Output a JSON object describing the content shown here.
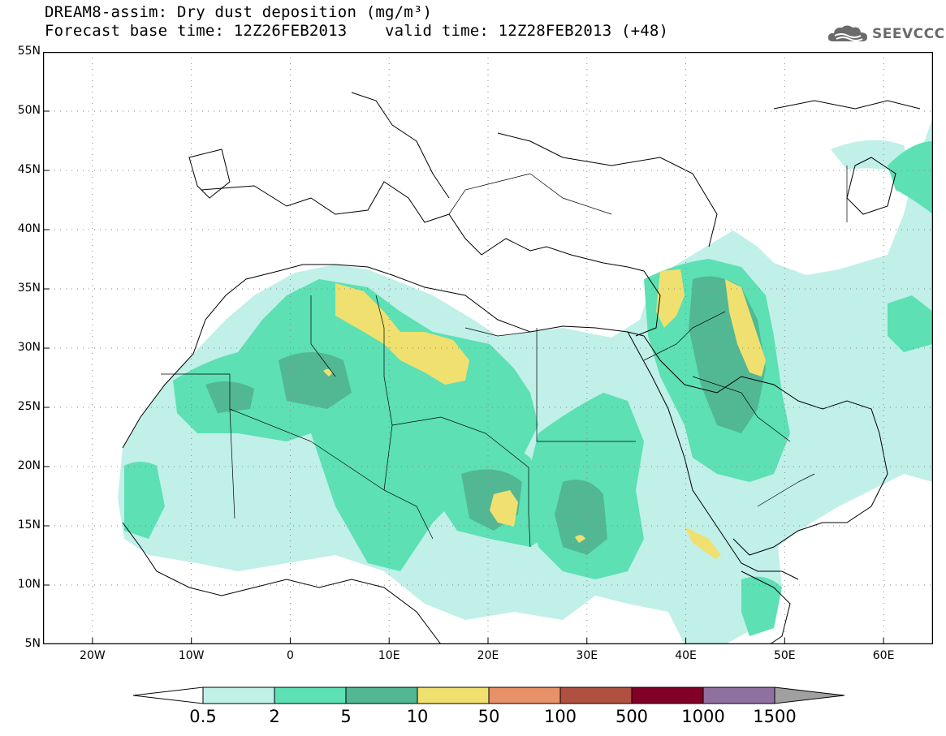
{
  "title": {
    "line1": "DREAM8-assim: Dry dust deposition (mg/m³)",
    "line2": "Forecast base time: 12Z26FEB2013    valid time: 12Z28FEB2013 (+48)"
  },
  "logo": {
    "icon": "cloud-icon",
    "text": "SEEVCCC"
  },
  "map": {
    "lon_range": [
      -25,
      65
    ],
    "lat_range": [
      5,
      55
    ],
    "lat_ticks": [
      "55N",
      "50N",
      "45N",
      "40N",
      "35N",
      "30N",
      "25N",
      "20N",
      "15N",
      "10N",
      "5N"
    ],
    "lon_ticks": [
      "20W",
      "10W",
      "0",
      "10E",
      "20E",
      "30E",
      "40E",
      "50E",
      "60E"
    ],
    "gridlines": "dotted"
  },
  "legend": {
    "levels": [
      "0.5",
      "2",
      "5",
      "10",
      "50",
      "100",
      "500",
      "1000",
      "1500"
    ],
    "colors": [
      "#c0f0e8",
      "#5ce0b4",
      "#52b894",
      "#f0e070",
      "#e89068",
      "#b05040",
      "#800028",
      "#9070a0"
    ],
    "under_color": "#ffffff",
    "over_color": "#a0a0a0"
  },
  "colors": {
    "level1": "#c0f0e8",
    "level2": "#5ce0b4",
    "level3": "#52b894",
    "level4": "#f0e070"
  }
}
